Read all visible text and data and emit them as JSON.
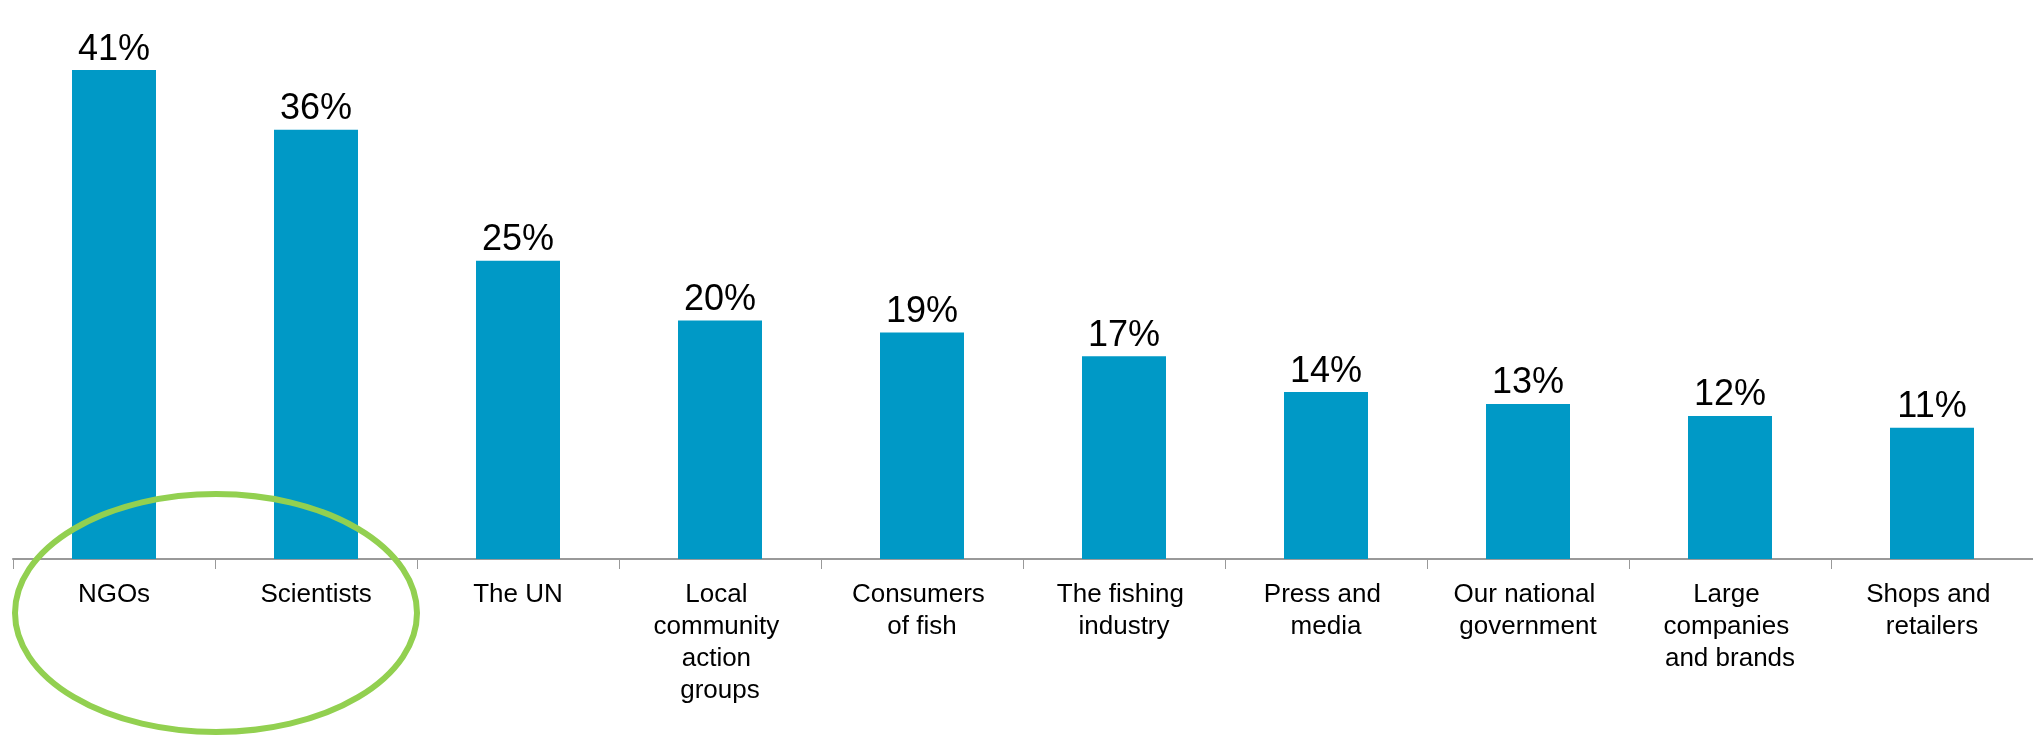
{
  "chart_data": {
    "type": "bar",
    "categories": [
      "NGOs",
      "Scientists",
      "The UN",
      "Local community action groups",
      "Consumers of fish",
      "The fishing industry",
      "Press and media",
      "Our national government",
      "Large companies and brands",
      "Shops and retailers"
    ],
    "values": [
      41,
      36,
      25,
      20,
      19,
      17,
      14,
      13,
      12,
      11
    ],
    "value_labels": [
      "41%",
      "36%",
      "25%",
      "20%",
      "19%",
      "17%",
      "14%",
      "13%",
      "12%",
      "11%"
    ],
    "color": "#0099c6"
  }
}
